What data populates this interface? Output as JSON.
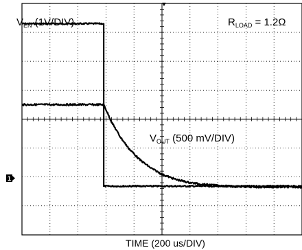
{
  "chart_data": {
    "type": "line",
    "title": "",
    "xlabel": "TIME (200 us/DIV)",
    "ylabel": "",
    "grid": true,
    "divisions": {
      "x": 10,
      "y": 8
    },
    "x_div_per_unit": "200 us",
    "xlim_div": [
      0,
      10
    ],
    "ylim_div": [
      -4,
      4
    ],
    "annotations": {
      "ven_label": {
        "main": "V",
        "sub": "EN",
        "rest": " (1V/DIV)"
      },
      "vout_label": {
        "main": "V",
        "sub": "OUT",
        "rest": " (500 mV/DIV)"
      },
      "rload_label": {
        "main": "R",
        "sub": "LOAD",
        "rest": " = 1.2Ω"
      },
      "ground_marker": "1",
      "trigger_marker": "▼"
    },
    "series": [
      {
        "key": "ven",
        "x_div": [
          0,
          2.92,
          2.92,
          10
        ],
        "y_div": [
          3.3,
          3.3,
          -2.32,
          -2.32
        ],
        "noise": 0.025
      },
      {
        "key": "vout",
        "x_div": [
          0,
          0.5,
          1,
          1.5,
          2,
          2.5,
          2.92,
          3.0,
          3.2,
          3.5,
          3.8,
          4.2,
          4.6,
          5.0,
          5.5,
          6.0,
          6.5,
          7.0,
          7.5,
          8.0,
          8.5,
          9.0,
          9.5,
          10
        ],
        "y_div": [
          0.5,
          0.5,
          0.5,
          0.5,
          0.5,
          0.5,
          0.5,
          0.33,
          -0.1,
          -0.6,
          -1.0,
          -1.4,
          -1.69,
          -1.91,
          -2.09,
          -2.2,
          -2.26,
          -2.3,
          -2.33,
          -2.34,
          -2.35,
          -2.35,
          -2.35,
          -2.35
        ],
        "noise": 0.03
      }
    ]
  }
}
